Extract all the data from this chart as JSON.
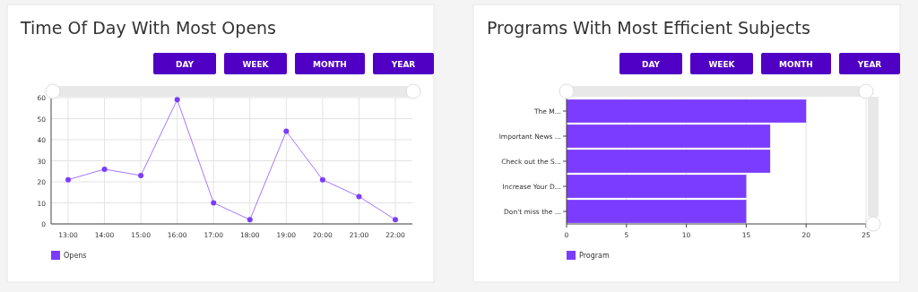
{
  "chart_data": [
    {
      "type": "line",
      "title": "Time Of Day With Most Opens",
      "annotations": [
        "DAY",
        "WEEK",
        "MONTH",
        "YEAR"
      ],
      "categories": [
        "13:00",
        "14:00",
        "15:00",
        "16:00",
        "17:00",
        "18:00",
        "19:00",
        "20:00",
        "21:00",
        "22:00"
      ],
      "series": [
        {
          "name": "Opens",
          "color": "#7b3cff",
          "values": [
            21,
            26,
            23,
            59,
            10,
            2,
            44,
            21,
            13,
            2
          ]
        }
      ],
      "ylim": [
        0,
        60
      ],
      "yticks": [
        0,
        10,
        20,
        30,
        40,
        50,
        60
      ],
      "grid": true,
      "legend": "bottom left",
      "marker": "circle"
    },
    {
      "type": "bar",
      "orientation": "horizontal",
      "title": "Programs With Most Efficient Subjects",
      "annotations": [
        "DAY",
        "WEEK",
        "MONTH",
        "YEAR"
      ],
      "categories": [
        "The M...",
        "Important News ...",
        "Check out the S...",
        "Increase Your D...",
        "Don't miss the ..."
      ],
      "series": [
        {
          "name": "Program",
          "color": "#7b3cff",
          "values": [
            20,
            17,
            17,
            15,
            15
          ]
        }
      ],
      "xlim": [
        0,
        25
      ],
      "xticks": [
        0,
        5,
        10,
        15,
        20,
        25
      ],
      "grid": "x",
      "legend": "bottom left"
    }
  ]
}
